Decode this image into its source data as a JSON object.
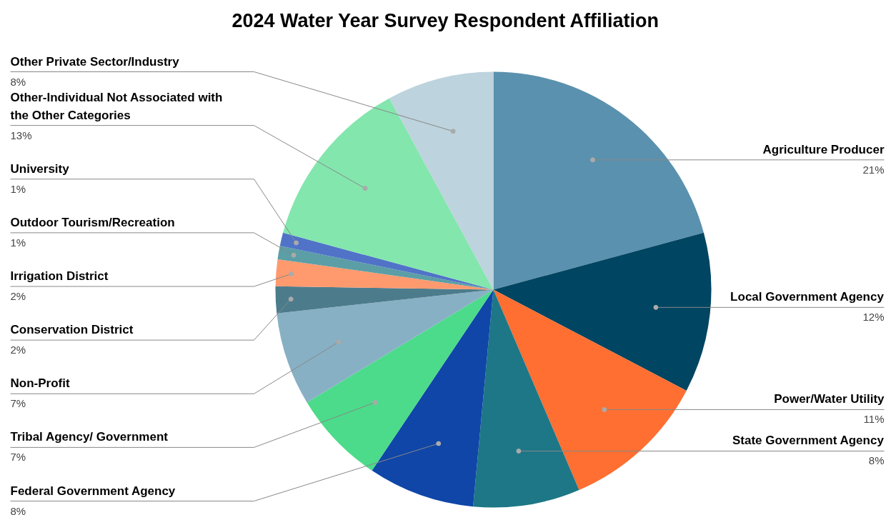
{
  "chart_data": {
    "type": "pie",
    "title": "2024 Water Year Survey Respondent Affiliation",
    "categories": [
      "Agriculture Producer",
      "Local Government Agency",
      "Power/Water Utility",
      "State Government Agency",
      "Federal Government Agency",
      "Tribal Agency/ Government",
      "Non-Profit",
      "Conservation District",
      "Irrigation District",
      "Outdoor Tourism/Recreation",
      "University",
      "Other-Individual Not Associated with the Other Categories",
      "Other Private Sector/Industry"
    ],
    "values": [
      21,
      12,
      11,
      8,
      8,
      7,
      7,
      2,
      2,
      1,
      1,
      13,
      8
    ],
    "value_labels": [
      "21%",
      "12%",
      "11%",
      "8%",
      "8%",
      "7%",
      "7%",
      "2%",
      "2%",
      "1%",
      "1%",
      "13%",
      "8%"
    ],
    "colors": [
      "#5a91ae",
      "#004561",
      "#ff6f31",
      "#1d7786",
      "#0f46a8",
      "#4bdb8a",
      "#88b0c4",
      "#4c7c8c",
      "#ff9a6e",
      "#5b9ea6",
      "#5073c8",
      "#83e6ad",
      "#bdd3dd"
    ]
  }
}
